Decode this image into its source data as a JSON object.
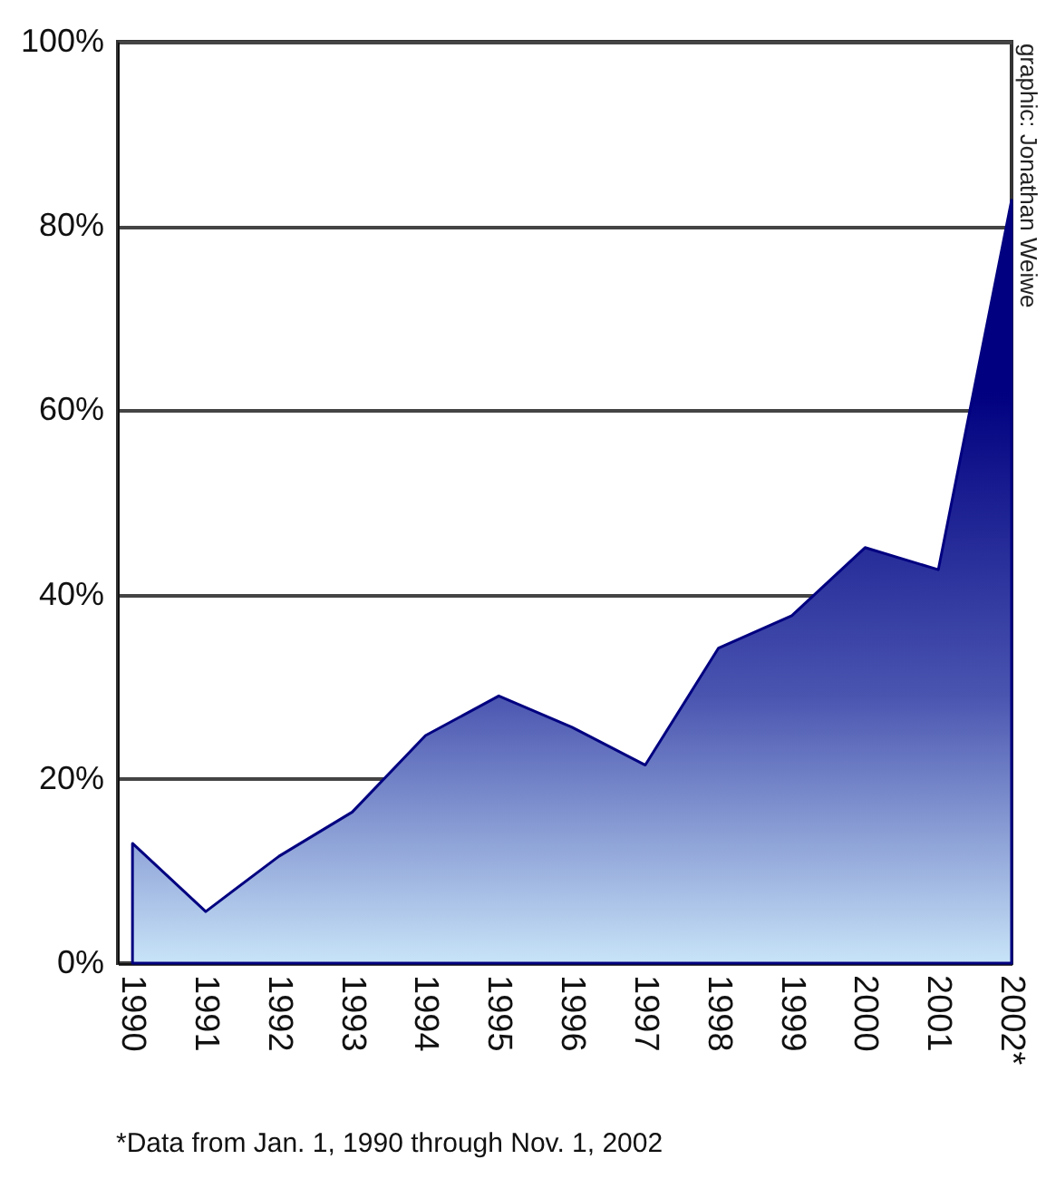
{
  "chart_data": {
    "type": "area",
    "categories": [
      "1990",
      "1991",
      "1992",
      "1993",
      "1994",
      "1995",
      "1996",
      "1997",
      "1998",
      "1999",
      "2000",
      "2001",
      "2002*"
    ],
    "series": [
      {
        "color": "#000080",
        "values": [
          13.0,
          5.6,
          11.6,
          16.4,
          24.7,
          29.0,
          25.6,
          21.5,
          34.2,
          37.7,
          45.1,
          42.7,
          82.8
        ]
      }
    ],
    "ylim": [
      0,
      100
    ],
    "yticks": [
      {
        "value": 0,
        "label": "0%"
      },
      {
        "value": 20,
        "label": "20%"
      },
      {
        "value": 40,
        "label": "40%"
      },
      {
        "value": 60,
        "label": "60%"
      },
      {
        "value": 80,
        "label": "80%"
      },
      {
        "value": 100,
        "label": "100%"
      }
    ],
    "grid": "y",
    "annotations": [
      "*Data from Jan. 1, 1990 through Nov. 1, 2002",
      "graphic: Jonathan Weiwe"
    ]
  }
}
